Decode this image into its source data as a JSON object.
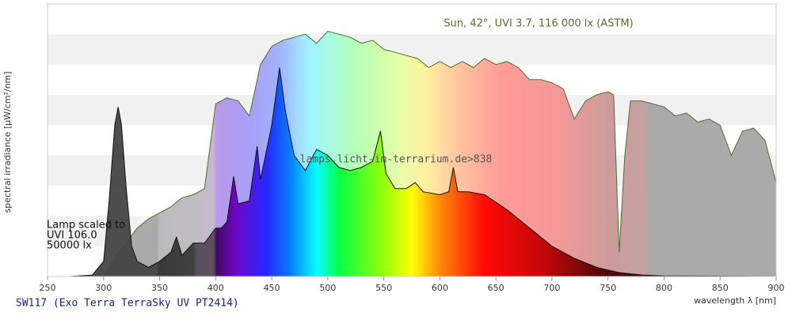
{
  "chart_data": {
    "type": "spectrum",
    "y_label": "spectral irradiance [µW/cm²/nm]",
    "x_label": "wavelength λ [nm]",
    "footer": "SW117 (Exo Terra TerraSky UV PT2414)",
    "sun_note": "Sun, 42°, UVI 3.7, 116 000 lx (ASTM)",
    "lamp_note": [
      "Lamp scaled to",
      "UVI 106.0",
      "50000 lx"
    ],
    "watermark": "lamps.licht-im-terrarium.de>838",
    "xlim": [
      250,
      900
    ],
    "xticks": [
      250,
      300,
      350,
      400,
      450,
      500,
      550,
      600,
      650,
      700,
      750,
      800,
      850,
      900
    ],
    "ylim": [
      0,
      9
    ],
    "grid_bands": [
      0,
      1,
      2,
      3,
      4,
      5,
      6,
      7,
      8,
      9
    ],
    "series": [
      {
        "color": "#556b2f",
        "x": [
          295,
          300,
          305,
          310,
          320,
          330,
          340,
          350,
          360,
          370,
          380,
          390,
          400,
          410,
          420,
          430,
          440,
          450,
          460,
          470,
          480,
          490,
          500,
          510,
          520,
          530,
          540,
          550,
          560,
          570,
          580,
          590,
          600,
          610,
          620,
          630,
          640,
          650,
          660,
          670,
          680,
          690,
          700,
          710,
          720,
          730,
          740,
          750,
          755,
          760,
          765,
          770,
          780,
          790,
          800,
          810,
          820,
          830,
          840,
          850,
          860,
          870,
          880,
          890,
          900
        ],
        "values": [
          0,
          0.05,
          0.3,
          0.6,
          1.1,
          1.6,
          1.9,
          2.1,
          2.3,
          2.6,
          2.7,
          2.9,
          5.7,
          5.9,
          5.8,
          5.3,
          7.0,
          7.6,
          7.8,
          7.9,
          8.0,
          7.7,
          8.1,
          8.0,
          7.9,
          7.7,
          7.8,
          7.5,
          7.4,
          7.3,
          7.2,
          6.9,
          7.1,
          6.9,
          7.1,
          6.9,
          7.2,
          7.0,
          7.1,
          6.9,
          6.5,
          6.5,
          6.4,
          6.2,
          5.2,
          5.8,
          6.0,
          6.1,
          6.0,
          0.8,
          4.0,
          5.8,
          5.8,
          5.7,
          5.6,
          5.3,
          5.4,
          5.1,
          5.2,
          5.0,
          4.0,
          4.8,
          4.9,
          4.5,
          3.1
        ]
      },
      {
        "color": "#111111",
        "x": [
          270,
          290,
          300,
          305,
          310,
          313,
          316,
          320,
          325,
          330,
          340,
          350,
          360,
          365,
          370,
          380,
          390,
          400,
          405,
          410,
          416,
          420,
          430,
          437,
          440,
          450,
          457,
          462,
          470,
          480,
          490,
          500,
          510,
          520,
          530,
          540,
          547,
          552,
          560,
          570,
          578,
          585,
          600,
          608,
          612,
          616,
          625,
          640,
          660,
          680,
          700,
          720,
          740,
          760,
          780,
          800,
          850,
          900
        ],
        "values": [
          0,
          0.05,
          0.5,
          2.5,
          5.0,
          5.6,
          5.0,
          3.0,
          1.0,
          0.5,
          0.3,
          0.5,
          0.8,
          1.3,
          0.7,
          1.1,
          1.1,
          1.6,
          1.6,
          1.8,
          3.3,
          2.4,
          2.5,
          4.3,
          3.2,
          5.0,
          6.9,
          5.5,
          4.0,
          3.5,
          4.2,
          4.0,
          3.6,
          3.5,
          3.6,
          3.8,
          4.8,
          3.4,
          2.9,
          2.9,
          3.1,
          2.8,
          2.7,
          2.8,
          3.6,
          2.8,
          2.8,
          2.7,
          2.2,
          1.6,
          1.0,
          0.6,
          0.3,
          0.13,
          0.05,
          0.02,
          0.01,
          0
        ]
      }
    ]
  }
}
